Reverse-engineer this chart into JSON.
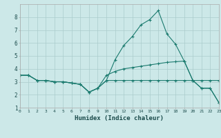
{
  "xlabel": "Humidex (Indice chaleur)",
  "background_color": "#cce8e8",
  "grid_color": "#aacccc",
  "line_color": "#1a7a6e",
  "x_values": [
    0,
    1,
    2,
    3,
    4,
    5,
    6,
    7,
    8,
    9,
    10,
    11,
    12,
    13,
    14,
    15,
    16,
    17,
    18,
    19,
    20,
    21,
    22,
    23
  ],
  "line1": [
    3.5,
    3.5,
    3.1,
    3.1,
    3.0,
    3.0,
    2.9,
    2.8,
    2.2,
    2.5,
    3.1,
    4.7,
    5.8,
    6.5,
    7.4,
    7.8,
    8.5,
    6.7,
    5.9,
    4.6,
    3.1,
    2.5,
    2.5,
    1.4
  ],
  "line2": [
    3.5,
    3.5,
    3.1,
    3.1,
    3.0,
    3.0,
    2.9,
    2.8,
    2.2,
    2.5,
    3.1,
    3.1,
    3.1,
    3.1,
    3.1,
    3.1,
    3.1,
    3.1,
    3.1,
    3.1,
    3.1,
    3.1,
    3.1,
    3.1
  ],
  "line3": [
    3.5,
    3.5,
    3.1,
    3.1,
    3.0,
    3.0,
    2.9,
    2.8,
    2.2,
    2.5,
    3.5,
    3.8,
    4.0,
    4.1,
    4.2,
    4.3,
    4.4,
    4.5,
    4.55,
    4.6,
    3.1,
    2.5,
    2.5,
    1.4
  ],
  "ylim": [
    1,
    9
  ],
  "xlim": [
    0,
    23
  ],
  "yticks": [
    1,
    2,
    3,
    4,
    5,
    6,
    7,
    8
  ],
  "xticks": [
    0,
    1,
    2,
    3,
    4,
    5,
    6,
    7,
    8,
    9,
    10,
    11,
    12,
    13,
    14,
    15,
    16,
    17,
    18,
    19,
    20,
    21,
    22,
    23
  ]
}
